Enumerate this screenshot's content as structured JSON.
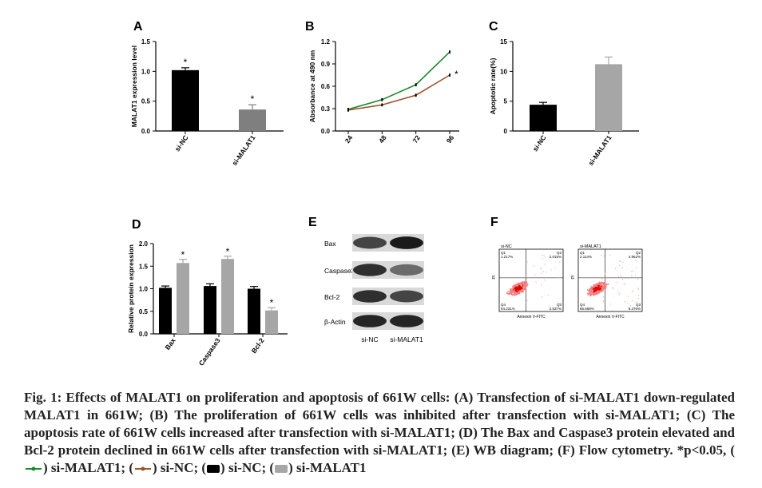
{
  "panel_labels": [
    "A",
    "B",
    "C",
    "D",
    "E",
    "F"
  ],
  "chart_data": [
    {
      "panel": "A",
      "type": "bar",
      "categories": [
        "si-NC",
        "si-MALAT1"
      ],
      "values": [
        1.02,
        0.36
      ],
      "errors": [
        0.04,
        0.08
      ],
      "significance": [
        "*",
        "*"
      ],
      "colors": [
        "#000000",
        "#7f7f7f"
      ],
      "ylabel": "MALAT1 expression level",
      "ylim": [
        0,
        1.5
      ],
      "yticks": [
        "0.0",
        "0.5",
        "1.0",
        "1.5"
      ]
    },
    {
      "panel": "B",
      "type": "line",
      "x": [
        24,
        48,
        72,
        96
      ],
      "xticks": [
        "24",
        "48",
        "72",
        "96"
      ],
      "series": [
        {
          "values": [
            0.29,
            0.42,
            0.62,
            1.06
          ],
          "errors": [
            0.02,
            0.02,
            0.02,
            0.02
          ],
          "color": "#1a8a2a"
        },
        {
          "values": [
            0.28,
            0.35,
            0.48,
            0.75
          ],
          "errors": [
            0.02,
            0.02,
            0.02,
            0.02
          ],
          "color": "#a0522d"
        }
      ],
      "significance": "*",
      "ylabel": "Absorbance at 490 nm",
      "ylim": [
        0.0,
        1.2
      ],
      "yticks": [
        "0.0",
        "0.3",
        "0.6",
        "0.9",
        "1.2"
      ]
    },
    {
      "panel": "C",
      "type": "bar",
      "categories": [
        "si-NC",
        "si-MALAT1"
      ],
      "values": [
        4.4,
        11.2
      ],
      "errors": [
        0.4,
        1.2
      ],
      "colors": [
        "#000000",
        "#a6a6a6"
      ],
      "ylabel": "Apoptotic rate(%)",
      "ylim": [
        0,
        15
      ],
      "yticks": [
        "0",
        "5",
        "10",
        "15"
      ]
    },
    {
      "panel": "D",
      "type": "bar",
      "categories": [
        "Bax",
        "Caspase3",
        "Bcl-2"
      ],
      "series": [
        {
          "values": [
            1.02,
            1.06,
            1.0
          ],
          "errors": [
            0.04,
            0.05,
            0.05
          ],
          "color": "#000000"
        },
        {
          "values": [
            1.57,
            1.66,
            0.52
          ],
          "errors": [
            0.08,
            0.06,
            0.06
          ],
          "color": "#a6a6a6"
        }
      ],
      "significance": [
        "*",
        "*",
        "*"
      ],
      "ylabel": "Relative protein expression",
      "ylim": [
        0,
        2.0
      ],
      "yticks": [
        "0.0",
        "0.5",
        "1.0",
        "1.5",
        "2.0"
      ]
    }
  ],
  "western_blot": {
    "proteins": [
      "Bax",
      "Caspase3",
      "Bcl-2",
      "β-Actin"
    ],
    "lanes": [
      "si-NC",
      "si-MALAT1"
    ],
    "intensity": [
      [
        0.75,
        0.95
      ],
      [
        0.85,
        0.55
      ],
      [
        0.85,
        0.75
      ],
      [
        0.9,
        0.9
      ]
    ]
  },
  "flow_cytometry": [
    {
      "title": "si-NC",
      "q1": "1.217%",
      "q2": "2.015%",
      "q3": "2.537%",
      "q4": "94.231%",
      "xlabel": "Annexin V-FITC",
      "ylabel": "PI",
      "labels": [
        "Q1",
        "Q2",
        "Q3",
        "Q4"
      ]
    },
    {
      "title": "si-MALAT1",
      "q1": "2.114%",
      "q2": "4.952%",
      "q3": "6.276%",
      "q4": "86.668%",
      "xlabel": "Annexin V-FITC",
      "ylabel": "PI",
      "labels": [
        "Q1",
        "Q2",
        "Q3",
        "Q4"
      ]
    }
  ],
  "caption": {
    "text": "Fig. 1: Effects of MALAT1 on proliferation and apoptosis of 661W cells: (A) Transfection of si-MALAT1 down-regulated MALAT1 in 661W; (B) The proliferation of 661W cells was inhibited after transfection with si-MALAT1; (C) The apoptosis rate of 661W cells increased after transfection with si-MALAT1; (D) The Bax and Caspase3 protein elevated and Bcl-2 protein declined in 661W cells after transfection with si-MALAT1; (E) WB diagram; (F) Flow cytometry. *p<0.05, (",
    "l1": ") si-MALAT1; (",
    "l2": ") si-NC;  (",
    "l3": ") si-NC; (",
    "l4": ") si-MALAT1"
  },
  "colors": {
    "green": "#1a8a2a",
    "brown": "#a0522d",
    "black": "#000000",
    "gray": "#a6a6a6"
  }
}
